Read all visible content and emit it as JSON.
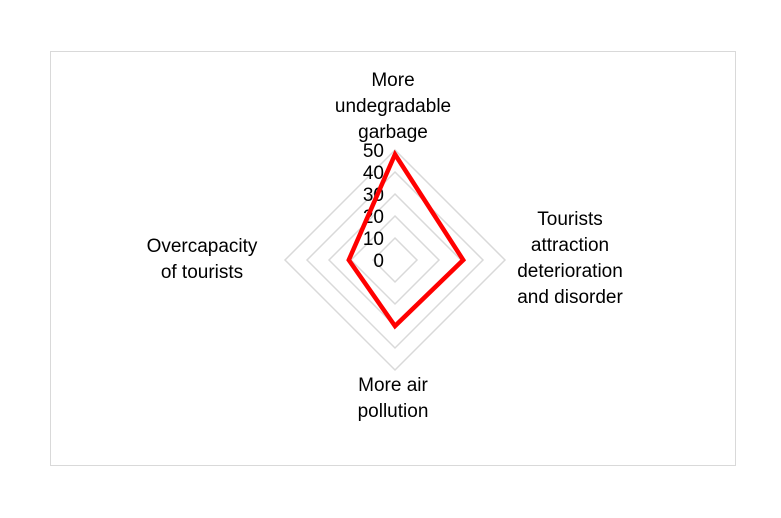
{
  "chart_data": {
    "type": "radar",
    "title": "",
    "categories": [
      "More\nundegradable\ngarbage",
      "Tourists\nattraction\ndeterioration\nand disorder",
      "More air\npollution",
      "Overcapacity\nof tourists"
    ],
    "tick_labels": [
      "0",
      "10",
      "20",
      "30",
      "40",
      "50"
    ],
    "rlim": [
      0,
      50
    ],
    "grid": true,
    "legend": "none",
    "series": [
      {
        "values": [
          48,
          31,
          30,
          21
        ],
        "color": "#ff0000"
      }
    ],
    "grid_color": "#d9d9d9"
  }
}
